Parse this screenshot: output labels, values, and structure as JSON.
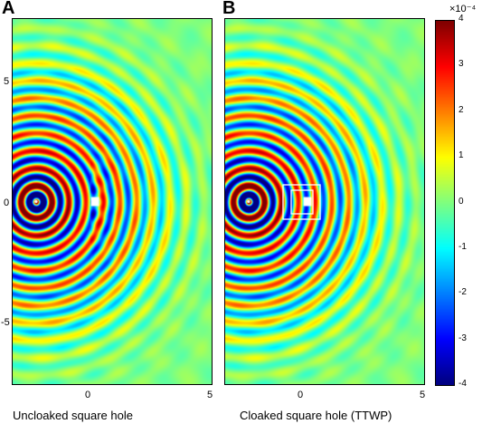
{
  "panels": [
    {
      "letter": "A",
      "caption": "Uncloaked square hole",
      "cloaked": false
    },
    {
      "letter": "B",
      "caption": "Cloaked square hole (TTWP)",
      "cloaked": true
    }
  ],
  "axes": {
    "x_ticks": [
      "0",
      "5"
    ],
    "y_ticks": [
      "5",
      "0",
      "-5"
    ]
  },
  "colorbar": {
    "exponent_label": "×10⁻⁴",
    "ticks": [
      "4",
      "3",
      "2",
      "1",
      "0",
      "-1",
      "-2",
      "-3",
      "-4"
    ],
    "colormap": "jet"
  },
  "chart_data": {
    "type": "heatmap",
    "title": "",
    "xlabel": "",
    "ylabel": "",
    "field": "wave-field amplitude from point source near x=-2.5, y=0",
    "xlim": [
      -3.5,
      5
    ],
    "ylim": [
      -7.5,
      7.5
    ],
    "clim": [
      -0.0004,
      0.0004
    ],
    "colorbar_unit_scale": "1e-4",
    "panels": [
      {
        "name": "Uncloaked square hole",
        "source_position": [
          -2.5,
          0
        ],
        "hole_position": [
          0,
          0
        ]
      },
      {
        "name": "Cloaked square hole (TTWP)",
        "source_position": [
          -2.5,
          0
        ],
        "hole_position": [
          0,
          0
        ]
      }
    ]
  }
}
